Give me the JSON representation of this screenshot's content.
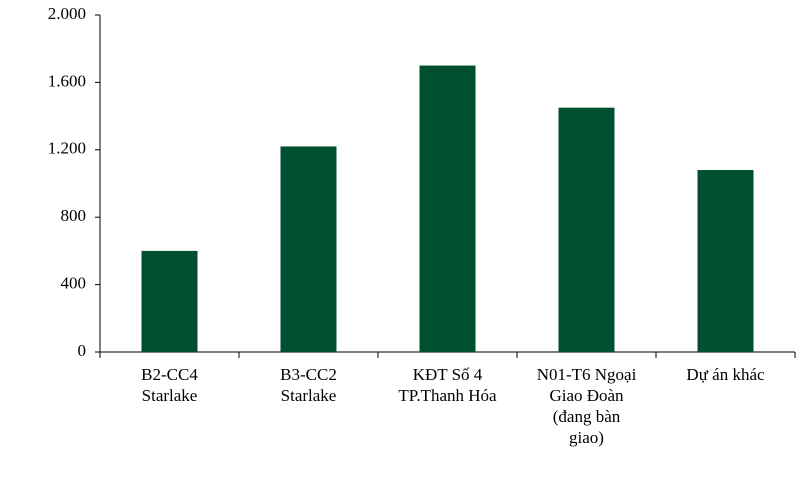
{
  "chart_data": {
    "type": "bar",
    "categories": [
      "B2-CC4 Starlake",
      "B3-CC2 Starlake",
      "KĐT Số 4 TP.Thanh Hóa",
      "N01-T6 Ngoại Giao Đoàn (đang bàn giao)",
      "Dự án khác"
    ],
    "values": [
      600,
      1220,
      1700,
      1450,
      1080
    ],
    "color": "#005030",
    "ylim": [
      0,
      2000
    ],
    "yticks": [
      0,
      400,
      800,
      {
        "value": 1200,
        "label": "1.200"
      },
      {
        "value": 1600,
        "label": "1.600"
      },
      {
        "value": 2000,
        "label": "2.000"
      }
    ],
    "grid": false
  }
}
